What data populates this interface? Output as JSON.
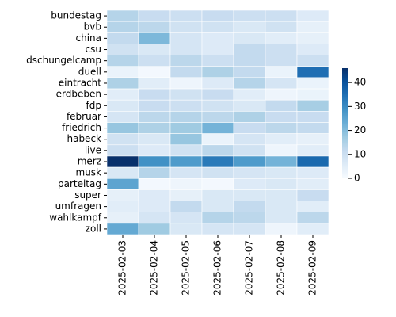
{
  "chart_data": {
    "type": "heatmap",
    "x": [
      "2025-02-03",
      "2025-02-04",
      "2025-02-05",
      "2025-02-06",
      "2025-02-07",
      "2025-02-08",
      "2025-02-09"
    ],
    "categories": [
      "bundestag",
      "bvb",
      "china",
      "csu",
      "dschungelcamp",
      "duell",
      "eintracht",
      "erdbeben",
      "fdp",
      "februar",
      "friedrich",
      "habeck",
      "live",
      "merz",
      "musk",
      "parteitag",
      "super",
      "umfragen",
      "wahlkampf",
      "zoll"
    ],
    "values": [
      [
        14,
        11,
        10,
        11,
        10,
        10,
        6
      ],
      [
        14,
        13,
        9,
        9,
        7,
        9,
        4
      ],
      [
        12,
        21,
        8,
        6,
        7,
        5,
        4
      ],
      [
        9,
        7,
        8,
        6,
        12,
        10,
        6
      ],
      [
        14,
        10,
        13,
        10,
        12,
        10,
        10
      ],
      [
        3,
        1,
        12,
        15,
        12,
        3,
        35
      ],
      [
        15,
        5,
        2,
        6,
        14,
        8,
        3
      ],
      [
        5,
        11,
        9,
        11,
        5,
        2,
        3
      ],
      [
        7,
        11,
        10,
        9,
        7,
        12,
        16
      ],
      [
        8,
        13,
        14,
        13,
        15,
        11,
        11
      ],
      [
        18,
        15,
        17,
        22,
        11,
        13,
        12
      ],
      [
        9,
        7,
        18,
        3,
        8,
        5,
        4
      ],
      [
        10,
        6,
        9,
        13,
        9,
        2,
        5
      ],
      [
        46,
        29,
        27,
        33,
        27,
        22,
        36
      ],
      [
        7,
        14,
        8,
        9,
        8,
        7,
        6
      ],
      [
        25,
        1,
        2,
        1,
        6,
        7,
        5
      ],
      [
        4,
        6,
        4,
        7,
        7,
        7,
        11
      ],
      [
        5,
        6,
        12,
        7,
        12,
        7,
        5
      ],
      [
        4,
        8,
        8,
        14,
        13,
        7,
        13
      ],
      [
        24,
        17,
        7,
        8,
        8,
        2,
        5
      ]
    ],
    "clim": [
      0,
      46
    ],
    "cticks": [
      0,
      10,
      20,
      30,
      40
    ],
    "colormap": [
      "#f7fbff",
      "#deebf7",
      "#c6dbef",
      "#9ecae1",
      "#6baed6",
      "#4292c6",
      "#2171b5",
      "#08519c",
      "#08306b"
    ]
  }
}
